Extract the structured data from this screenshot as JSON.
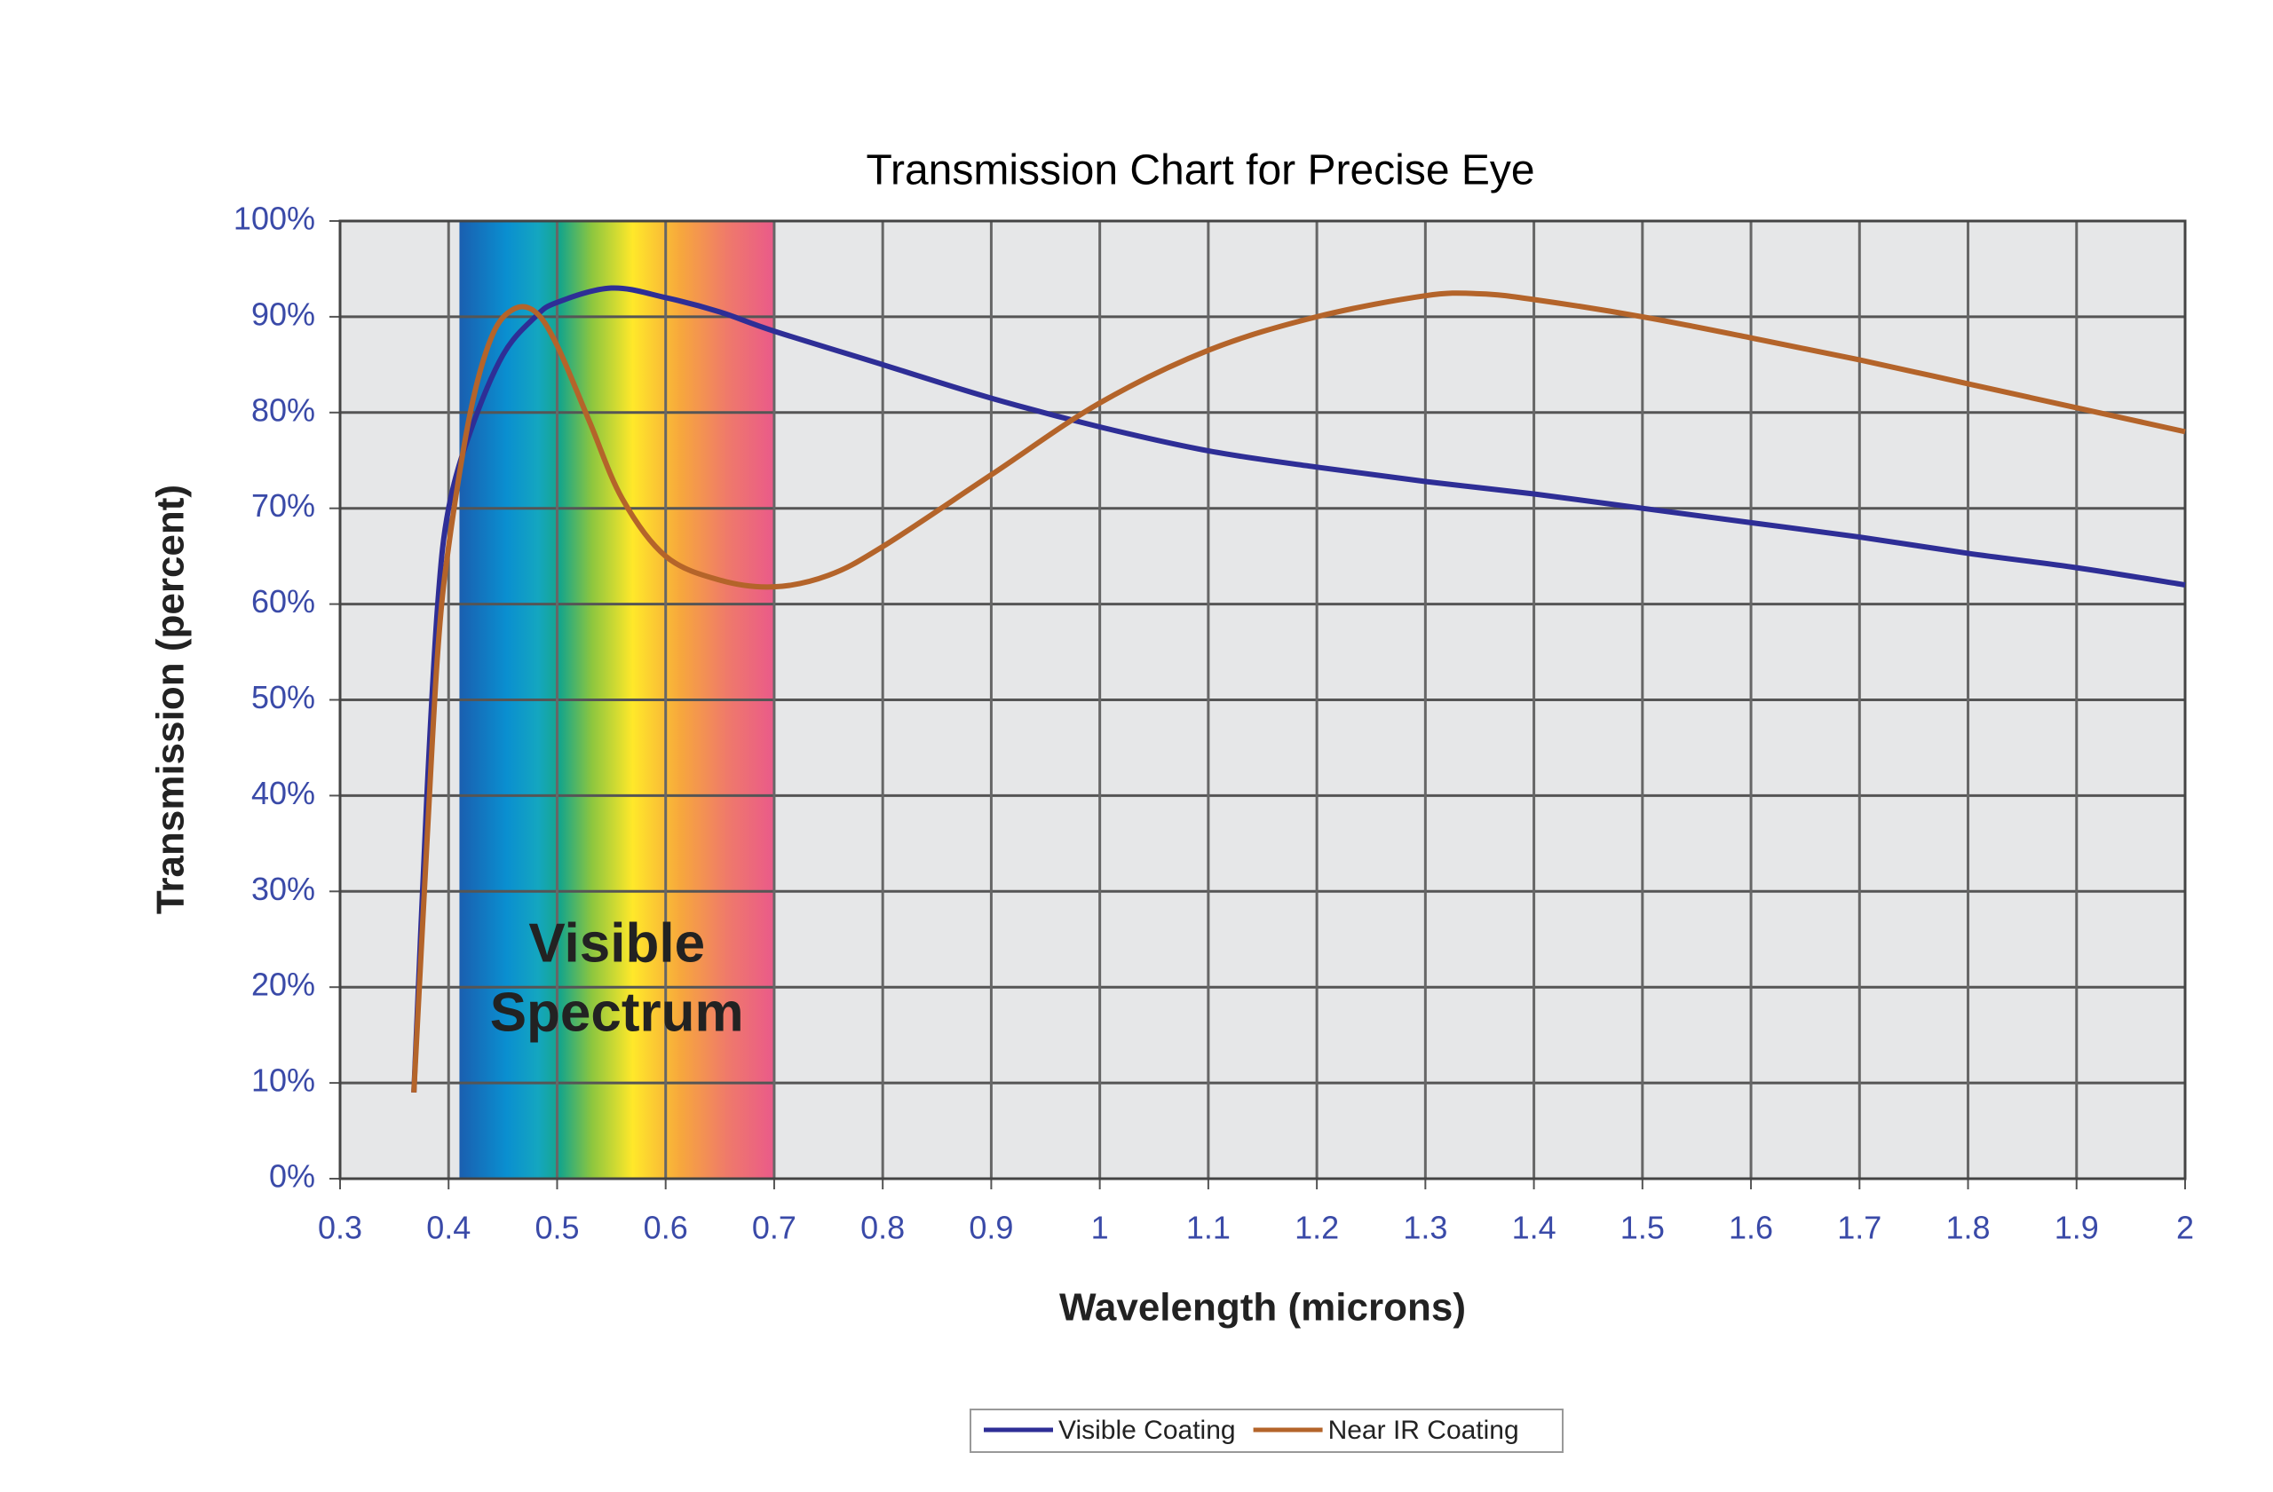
{
  "chart_data": {
    "type": "line",
    "title": "Transmission Chart for Precise Eye",
    "x_label": "Wavelength (microns)",
    "y_label": "Transmission (percent)",
    "xlim": [
      0.3,
      2
    ],
    "ylim": [
      0,
      100
    ],
    "xticks": [
      0.3,
      0.4,
      0.5,
      0.6,
      0.7,
      0.8,
      0.9,
      1,
      1.1,
      1.2,
      1.3,
      1.4,
      1.5,
      1.6,
      1.7,
      1.8,
      1.9,
      2
    ],
    "yticks": [
      {
        "value": 0,
        "label": "0%"
      },
      {
        "value": 10,
        "label": "10%"
      },
      {
        "value": 20,
        "label": "20%"
      },
      {
        "value": 30,
        "label": "30%"
      },
      {
        "value": 40,
        "label": "40%"
      },
      {
        "value": 50,
        "label": "50%"
      },
      {
        "value": 60,
        "label": "60%"
      },
      {
        "value": 70,
        "label": "70%"
      },
      {
        "value": 80,
        "label": "80%"
      },
      {
        "value": 90,
        "label": "90%"
      },
      {
        "value": 100,
        "label": "100%"
      }
    ],
    "grid": true,
    "region": {
      "label": [
        "Visible",
        "Spectrum"
      ],
      "xrange": [
        0.41,
        0.7
      ]
    },
    "legend": "bottom",
    "series": [
      {
        "name": "Visible Coating",
        "color": "#2e2e96",
        "x": [
          0.368,
          0.38,
          0.39,
          0.4,
          0.42,
          0.45,
          0.48,
          0.5,
          0.55,
          0.6,
          0.65,
          0.7,
          0.8,
          0.9,
          1.0,
          1.1,
          1.2,
          1.3,
          1.4,
          1.5,
          1.6,
          1.7,
          1.8,
          1.9,
          2.0
        ],
        "values": [
          9,
          40,
          60,
          70,
          78,
          86,
          90,
          91.5,
          93,
          92,
          90.5,
          88.5,
          85,
          81.5,
          78.5,
          76,
          74.3,
          72.8,
          71.5,
          70,
          68.5,
          67,
          65.3,
          63.8,
          62
        ]
      },
      {
        "name": "Near IR Coating",
        "color": "#b4642a",
        "x": [
          0.368,
          0.38,
          0.39,
          0.4,
          0.42,
          0.44,
          0.46,
          0.48,
          0.5,
          0.53,
          0.56,
          0.6,
          0.65,
          0.7,
          0.75,
          0.8,
          0.9,
          1.0,
          1.1,
          1.2,
          1.3,
          1.35,
          1.4,
          1.5,
          1.6,
          1.7,
          1.8,
          1.9,
          2.0
        ],
        "values": [
          9,
          35,
          55,
          66,
          80,
          88,
          90.8,
          90.5,
          87,
          79,
          71,
          65,
          62.5,
          61.8,
          63,
          66,
          73.5,
          81,
          86.5,
          90,
          92.2,
          92.4,
          91.8,
          90,
          87.8,
          85.5,
          83,
          80.5,
          78
        ]
      }
    ]
  }
}
